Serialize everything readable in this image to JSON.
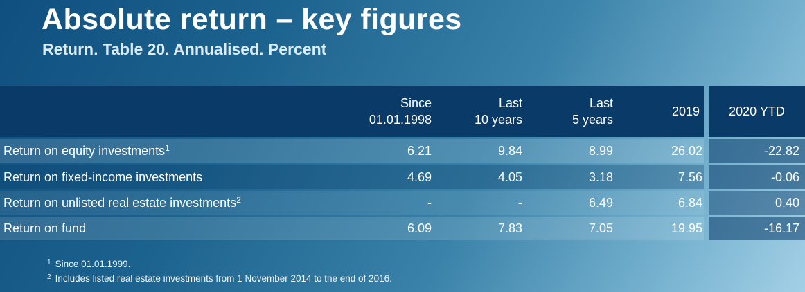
{
  "title": "Absolute return – key figures",
  "subtitle": "Return. Table 20. Annualised. Percent",
  "table": {
    "headers": [
      {
        "line1": "Since",
        "line2": "01.01.1998"
      },
      {
        "line1": "Last",
        "line2": "10 years"
      },
      {
        "line1": "Last",
        "line2": "5 years"
      },
      {
        "line1": "2019",
        "line2": ""
      },
      {
        "line1": "2020 YTD",
        "line2": ""
      }
    ],
    "rows": [
      {
        "label": "Return on equity investments",
        "note": "1",
        "values": [
          "6.21",
          "9.84",
          "8.99",
          "26.02",
          "-22.82"
        ]
      },
      {
        "label": "Return on fixed-income investments",
        "note": "",
        "values": [
          "4.69",
          "4.05",
          "3.18",
          "7.56",
          "-0.06"
        ]
      },
      {
        "label": "Return on unlisted real estate investments",
        "note": "2",
        "values": [
          "-",
          "-",
          "6.49",
          "6.84",
          "0.40"
        ]
      },
      {
        "label": "Return on fund",
        "note": "",
        "values": [
          "6.09",
          "7.83",
          "7.05",
          "19.95",
          "-16.17"
        ]
      }
    ]
  },
  "footnotes": [
    {
      "mark": "1",
      "text": "Since 01.01.1999."
    },
    {
      "mark": "2",
      "text": "Includes listed real estate investments from 1 November 2014 to the end of 2016."
    }
  ],
  "colors": {
    "header_bg": "#0a3a68",
    "row_band_light": "rgba(255,255,255,0.13)",
    "last_col_band": "rgba(10,58,104,0.55)"
  }
}
